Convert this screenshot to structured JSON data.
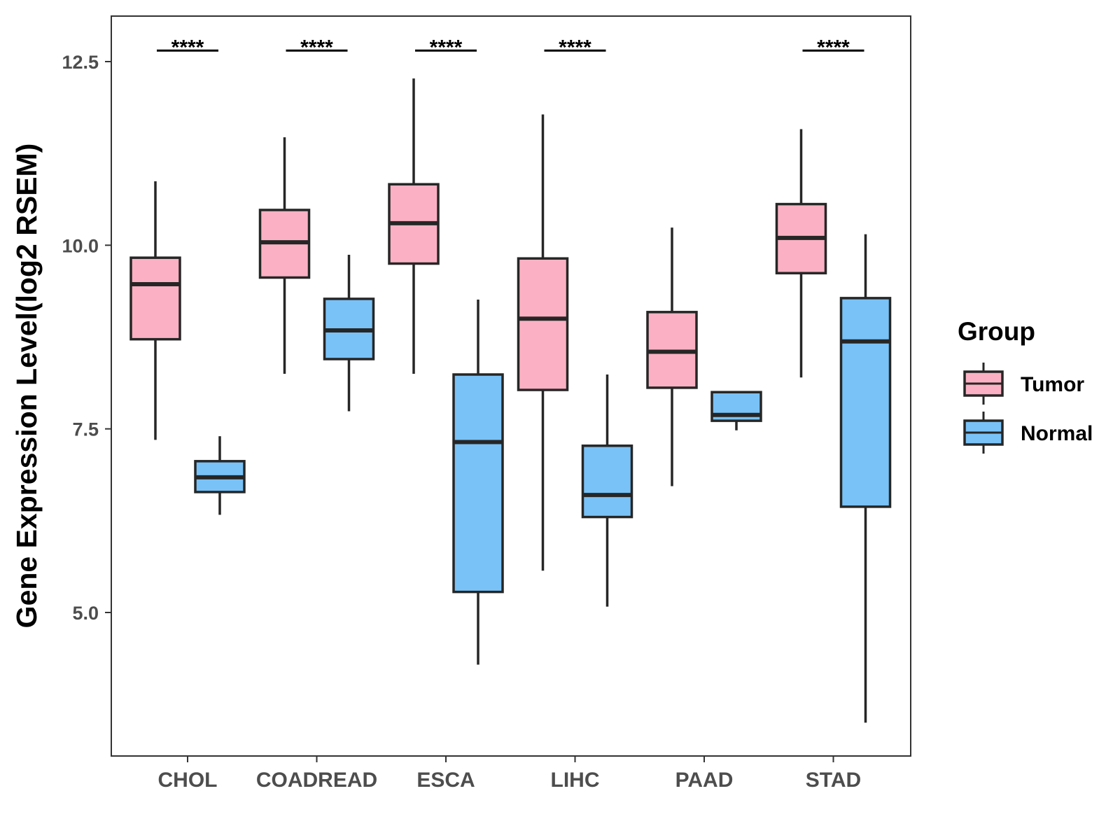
{
  "chart_data": {
    "type": "box",
    "title": "",
    "xlabel": "",
    "ylabel": "Gene Expression Level(log2 RSEM)",
    "ylim": [
      3.1,
      13.2
    ],
    "yticks": [
      5.0,
      7.5,
      10.0,
      12.5
    ],
    "ytick_labels": [
      "5.0",
      "7.5",
      "10.0",
      "12.5"
    ],
    "grid": false,
    "categories": [
      "CHOL",
      "COADREAD",
      "ESCA",
      "LIHC",
      "PAAD",
      "STAD"
    ],
    "legend": {
      "title": "Group",
      "position": "right",
      "entries": [
        {
          "name": "Tumor",
          "color": "#fbb1c3"
        },
        {
          "name": "Normal",
          "color": "#79c2f7"
        }
      ]
    },
    "series": [
      {
        "name": "Tumor",
        "color": "#fbb1c3",
        "boxes": [
          {
            "category": "CHOL",
            "min": 7.35,
            "q1": 8.72,
            "median": 9.47,
            "q3": 9.83,
            "max": 10.87
          },
          {
            "category": "COADREAD",
            "min": 8.25,
            "q1": 9.56,
            "median": 10.04,
            "q3": 10.48,
            "max": 11.47
          },
          {
            "category": "ESCA",
            "min": 8.25,
            "q1": 9.75,
            "median": 10.3,
            "q3": 10.83,
            "max": 12.27
          },
          {
            "category": "LIHC",
            "min": 5.57,
            "q1": 8.03,
            "median": 9.0,
            "q3": 9.82,
            "max": 11.78
          },
          {
            "category": "PAAD",
            "min": 6.72,
            "q1": 8.06,
            "median": 8.55,
            "q3": 9.09,
            "max": 10.24
          },
          {
            "category": "STAD",
            "min": 8.2,
            "q1": 9.62,
            "median": 10.1,
            "q3": 10.56,
            "max": 11.58
          }
        ]
      },
      {
        "name": "Normal",
        "color": "#79c2f7",
        "boxes": [
          {
            "category": "CHOL",
            "min": 6.33,
            "q1": 6.64,
            "median": 6.84,
            "q3": 7.06,
            "max": 7.4
          },
          {
            "category": "COADREAD",
            "min": 7.74,
            "q1": 8.45,
            "median": 8.84,
            "q3": 9.27,
            "max": 9.87
          },
          {
            "category": "ESCA",
            "min": 4.29,
            "q1": 5.28,
            "median": 7.32,
            "q3": 8.24,
            "max": 9.26
          },
          {
            "category": "LIHC",
            "min": 5.08,
            "q1": 6.3,
            "median": 6.6,
            "q3": 7.27,
            "max": 8.24
          },
          {
            "category": "PAAD",
            "min": 7.48,
            "q1": 7.61,
            "median": 7.69,
            "q3": 8.0,
            "max": 8.0
          },
          {
            "category": "STAD",
            "min": 3.5,
            "q1": 6.44,
            "median": 8.69,
            "q3": 9.28,
            "max": 10.15
          }
        ]
      }
    ],
    "annotations": [
      {
        "category": "CHOL",
        "text": "****",
        "y": 12.65
      },
      {
        "category": "COADREAD",
        "text": "****",
        "y": 12.65
      },
      {
        "category": "ESCA",
        "text": "****",
        "y": 12.65
      },
      {
        "category": "LIHC",
        "text": "****",
        "y": 12.65
      },
      {
        "category": "STAD",
        "text": "****",
        "y": 12.65
      }
    ]
  }
}
